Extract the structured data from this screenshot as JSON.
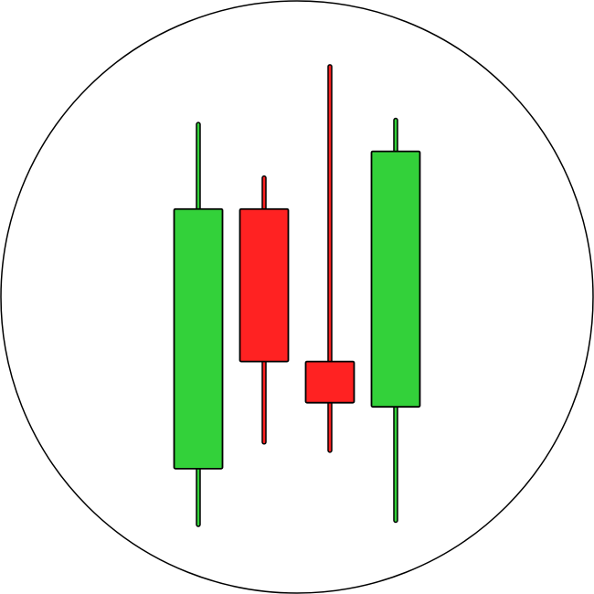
{
  "icon": {
    "name": "candlestick-chart-icon",
    "colors": {
      "background": "#ffffff",
      "outline": "#000000",
      "bullish": "#33d13a",
      "bearish": "#ff2222"
    },
    "candles": [
      {
        "trend": "bullish",
        "open": 0.14,
        "close": 0.77,
        "high": 0.98,
        "low": 0.0
      },
      {
        "trend": "bearish",
        "open": 0.77,
        "close": 0.4,
        "high": 0.85,
        "low": 0.2
      },
      {
        "trend": "bearish",
        "open": 0.4,
        "close": 0.3,
        "high": 1.12,
        "low": 0.18
      },
      {
        "trend": "bullish",
        "open": 0.29,
        "close": 0.91,
        "high": 0.99,
        "low": 0.01
      }
    ]
  }
}
